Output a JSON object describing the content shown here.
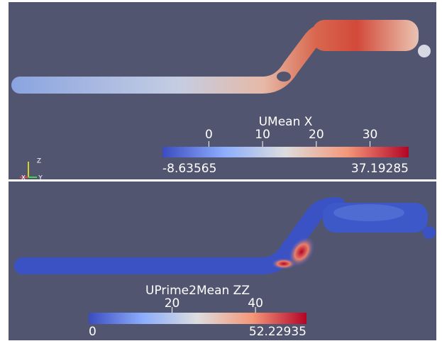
{
  "panels": [
    {
      "colorbar": {
        "title": "UMean X",
        "range": [
          -8.63565,
          37.19285
        ],
        "ticks": [
          0,
          10,
          20,
          30
        ]
      },
      "orientation_axes": [
        "Z",
        "X",
        "Y"
      ]
    },
    {
      "colorbar": {
        "title": "UPrime2Mean ZZ",
        "range": [
          0,
          52.22935
        ],
        "ticks": [
          20,
          40
        ]
      }
    }
  ]
}
